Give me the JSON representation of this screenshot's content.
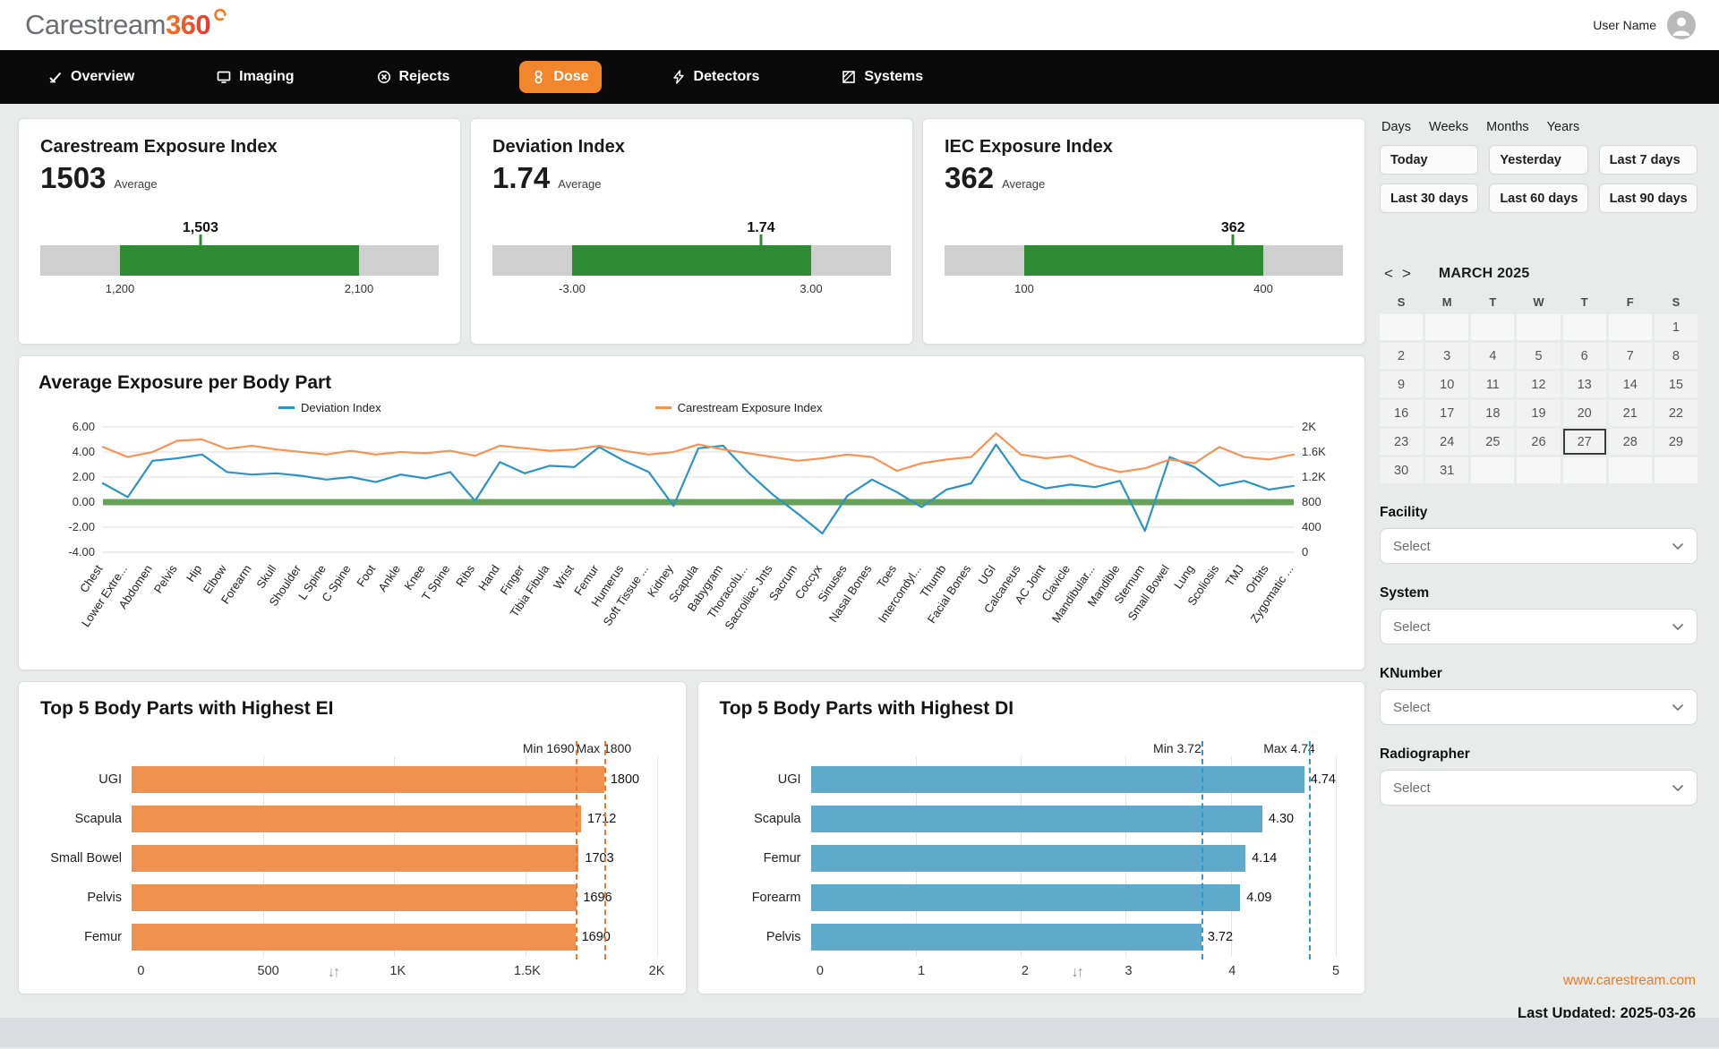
{
  "header": {
    "logo_care": "Carestream",
    "logo_360": "360",
    "user_name": "User Name"
  },
  "nav": {
    "items": [
      {
        "label": "Overview",
        "icon": "overview-icon",
        "active": false
      },
      {
        "label": "Imaging",
        "icon": "imaging-icon",
        "active": false
      },
      {
        "label": "Rejects",
        "icon": "rejects-icon",
        "active": false
      },
      {
        "label": "Dose",
        "icon": "dose-icon",
        "active": true
      },
      {
        "label": "Detectors",
        "icon": "detectors-icon",
        "active": false
      },
      {
        "label": "Systems",
        "icon": "systems-icon",
        "active": false
      }
    ]
  },
  "kpis": [
    {
      "title": "Carestream Exposure Index",
      "value": "1503",
      "unit_label": "Average",
      "marker_label": "1,503",
      "value_num": 1503,
      "range_min": 1200,
      "range_max": 2100,
      "range_min_label": "1,200",
      "range_max_label": "2,100"
    },
    {
      "title": "Deviation Index",
      "value": "1.74",
      "unit_label": "Average",
      "marker_label": "1.74",
      "value_num": 1.74,
      "range_min": -3,
      "range_max": 3,
      "range_min_label": "-3.00",
      "range_max_label": "3.00"
    },
    {
      "title": "IEC Exposure Index",
      "value": "362",
      "unit_label": "Average",
      "marker_label": "362",
      "value_num": 362,
      "range_min": 100,
      "range_max": 400,
      "range_min_label": "100",
      "range_max_label": "400"
    }
  ],
  "colors": {
    "accent_orange": "#f2862c",
    "green": "#2e8b33",
    "blue_line": "#2c94c4",
    "orange_line": "#f79354",
    "blue_bar": "#5fa9cb",
    "orange_bar": "#f0924f"
  },
  "chart_data": [
    {
      "type": "line",
      "title": "Average Exposure per Body Part",
      "categories": [
        "Chest",
        "Lower Extre...",
        "Abdomen",
        "Pelvis",
        "Hip",
        "Elbow",
        "Forearm",
        "Skull",
        "Shoulder",
        "L Spine",
        "C Spine",
        "Foot",
        "Ankle",
        "Knee",
        "T Spine",
        "Ribs",
        "Hand",
        "Finger",
        "Tibia Fibula",
        "Wrist",
        "Femur",
        "Humerus",
        "Soft Tissue ...",
        "Kidney",
        "Scapula",
        "Babygram",
        "Thoracolu...",
        "Sacroiliac Jnts",
        "Sacrum",
        "Coccyx",
        "Sinuses",
        "Nasal Bones",
        "Toes",
        "Intercondyl...",
        "Thumb",
        "Facial Bones",
        "UGI",
        "Calcaneus",
        "AC Joint",
        "Clavicle",
        "Mandibular...",
        "Mandible",
        "Sternum",
        "Small Bowel",
        "Lung",
        "Scoliosis",
        "TMJ",
        "Orbits",
        "Zygomatic ..."
      ],
      "series": [
        {
          "name": "Deviation Index",
          "axis": "left",
          "color": "#2c94c4",
          "values": [
            1.5,
            0.4,
            3.3,
            3.5,
            3.8,
            2.4,
            2.2,
            2.3,
            2.1,
            1.8,
            2.0,
            1.6,
            2.2,
            1.9,
            2.4,
            0.1,
            3.2,
            2.3,
            2.9,
            2.8,
            4.4,
            3.3,
            2.4,
            -0.3,
            4.3,
            4.5,
            2.4,
            0.6,
            -0.9,
            -2.5,
            0.5,
            1.8,
            0.8,
            -0.4,
            1.0,
            1.5,
            4.6,
            1.8,
            1.1,
            1.4,
            1.2,
            1.7,
            -2.3,
            3.6,
            2.8,
            1.3,
            1.7,
            1.0,
            1.3
          ]
        },
        {
          "name": "Carestream Exposure Index",
          "axis": "right",
          "color": "#f79354",
          "values": [
            1680,
            1520,
            1600,
            1780,
            1800,
            1650,
            1700,
            1640,
            1600,
            1560,
            1620,
            1560,
            1600,
            1580,
            1620,
            1540,
            1700,
            1660,
            1620,
            1640,
            1700,
            1620,
            1560,
            1600,
            1720,
            1640,
            1580,
            1520,
            1460,
            1500,
            1560,
            1520,
            1300,
            1420,
            1480,
            1520,
            1900,
            1560,
            1500,
            1540,
            1380,
            1280,
            1340,
            1480,
            1420,
            1680,
            1520,
            1480,
            1560
          ]
        }
      ],
      "left_axis": {
        "min": -4,
        "max": 6,
        "ticks": [
          {
            "value": 6,
            "label": "6.00"
          },
          {
            "value": 4,
            "label": "4.00"
          },
          {
            "value": 2,
            "label": "2.00"
          },
          {
            "value": 0,
            "label": "0.00"
          },
          {
            "value": -2,
            "label": "-2.00"
          },
          {
            "value": -4,
            "label": "-4.00"
          }
        ]
      },
      "right_axis": {
        "min": 0,
        "max": 2000,
        "ticks": [
          {
            "value": 2000,
            "label": "2K"
          },
          {
            "value": 1600,
            "label": "1.6K"
          },
          {
            "value": 1200,
            "label": "1.2K"
          },
          {
            "value": 800,
            "label": "800"
          },
          {
            "value": 400,
            "label": "400"
          },
          {
            "value": 0,
            "label": "0"
          }
        ]
      },
      "zero_band_color": "#67a258",
      "grid": true,
      "legend_position": "top"
    },
    {
      "type": "bar",
      "title": "Top 5 Body Parts with Highest EI",
      "categories": [
        "UGI",
        "Scapula",
        "Small Bowel",
        "Pelvis",
        "Femur"
      ],
      "values": [
        1800,
        1712,
        1703,
        1696,
        1690
      ],
      "value_labels": [
        "1800",
        "1712",
        "1703",
        "1696",
        "1690"
      ],
      "xlim": [
        0,
        2000
      ],
      "x_ticks": [
        {
          "value": 0,
          "label": "0"
        },
        {
          "value": 500,
          "label": "500"
        },
        {
          "value": 1000,
          "label": "1K"
        },
        {
          "value": 1500,
          "label": "1.5K"
        },
        {
          "value": 2000,
          "label": "2K"
        }
      ],
      "bar_color": "#f0924f",
      "line_color": "#f2742c",
      "annotations": {
        "min_label": "Min 1690",
        "min_value": 1690,
        "max_label": "Max 1800",
        "max_value": 1800
      },
      "sort_icon": "↓↑",
      "sort_pct": 37.5,
      "max_label_shift": -52
    },
    {
      "type": "bar",
      "title": "Top 5 Body Parts with Highest DI",
      "categories": [
        "UGI",
        "Scapula",
        "Femur",
        "Forearm",
        "Pelvis"
      ],
      "values": [
        4.74,
        4.3,
        4.14,
        4.09,
        3.72
      ],
      "value_labels": [
        "4.74",
        "4.30",
        "4.14",
        "4.09",
        "3.72"
      ],
      "xlim": [
        0,
        5
      ],
      "x_ticks": [
        {
          "value": 0,
          "label": "0"
        },
        {
          "value": 1,
          "label": "1"
        },
        {
          "value": 2,
          "label": "2"
        },
        {
          "value": 3,
          "label": "3"
        },
        {
          "value": 4,
          "label": "4"
        },
        {
          "value": 5,
          "label": "5"
        }
      ],
      "bar_color": "#5fa9cb",
      "line_color": "#2f99c9",
      "annotations": {
        "min_label": "Min 3.72",
        "min_value": 3.72,
        "max_label": "Max 4.74",
        "max_value": 4.74
      },
      "sort_icon": "↓↑",
      "sort_pct": 50,
      "max_label_shift": -88
    }
  ],
  "sidebar": {
    "period_tabs": [
      "Days",
      "Weeks",
      "Months",
      "Years"
    ],
    "quick_ranges": [
      "Today",
      "Yesterday",
      "Last 7 days",
      "Last 30 days",
      "Last 60 days",
      "Last 90 days"
    ],
    "calendar": {
      "prev": "<",
      "next": ">",
      "title": "MARCH 2025",
      "day_headers": [
        "S",
        "M",
        "T",
        "W",
        "T",
        "F",
        "S"
      ],
      "weeks": [
        [
          "",
          "",
          "",
          "",
          "",
          "",
          "1"
        ],
        [
          "2",
          "3",
          "4",
          "5",
          "6",
          "7",
          "8"
        ],
        [
          "9",
          "10",
          "11",
          "12",
          "13",
          "14",
          "15"
        ],
        [
          "16",
          "17",
          "18",
          "19",
          "20",
          "21",
          "22"
        ],
        [
          "23",
          "24",
          "25",
          "26",
          "27",
          "28",
          "29"
        ],
        [
          "30",
          "31",
          "",
          "",
          "",
          "",
          ""
        ]
      ],
      "selected": "27"
    },
    "filters": [
      {
        "label": "Facility",
        "value": "Select"
      },
      {
        "label": "System",
        "value": "Select"
      },
      {
        "label": "KNumber",
        "value": "Select"
      },
      {
        "label": "Radiographer",
        "value": "Select"
      }
    ],
    "footer": {
      "link": "www.carestream.com",
      "last_updated_label": "Last Updated:",
      "last_updated_date": "2025-03-26"
    }
  }
}
